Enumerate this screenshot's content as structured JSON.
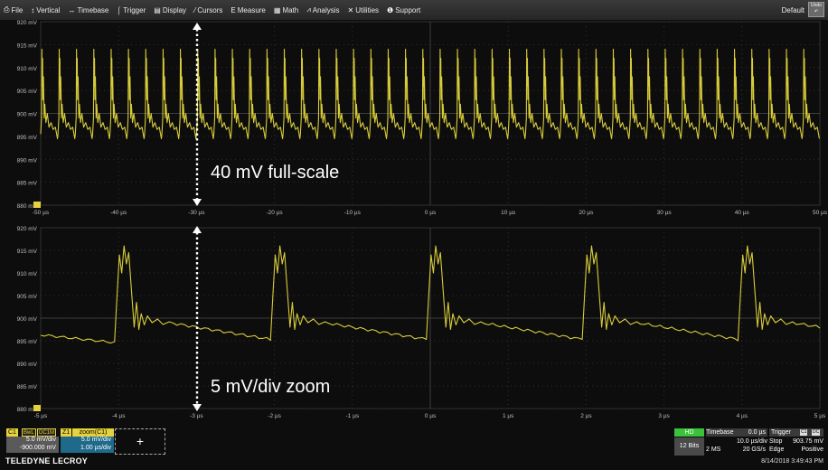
{
  "menu": {
    "items": [
      {
        "icon": "⎙",
        "label": "File",
        "name": "file"
      },
      {
        "icon": "↕",
        "label": "Vertical",
        "name": "vertical"
      },
      {
        "icon": "↔",
        "label": "Timebase",
        "name": "timebase"
      },
      {
        "icon": "⌠",
        "label": "Trigger",
        "name": "trigger"
      },
      {
        "icon": "▤",
        "label": "Display",
        "name": "display"
      },
      {
        "icon": "⁄",
        "label": "Cursors",
        "name": "cursors"
      },
      {
        "icon": "Ε",
        "label": "Measure",
        "name": "measure"
      },
      {
        "icon": "▦",
        "label": "Math",
        "name": "math"
      },
      {
        "icon": "⩘",
        "label": "Analysis",
        "name": "analysis"
      },
      {
        "icon": "✕",
        "label": "Utilities",
        "name": "utilities"
      },
      {
        "icon": "❶",
        "label": "Support",
        "name": "support"
      }
    ],
    "default_label": "Default",
    "undo_label": "Undo"
  },
  "grids": [
    {
      "name": "upper-grid",
      "y_labels": [
        "920 mV",
        "915 mV",
        "910 mV",
        "905 mV",
        "900 mV",
        "895 mV",
        "890 mV",
        "885 mV",
        "880 mV"
      ],
      "x_labels": [
        "-50 µs",
        "-40 µs",
        "-30 µs",
        "-20 µs",
        "-10 µs",
        "0 µs",
        "10 µs",
        "20 µs",
        "30 µs",
        "40 µs",
        "50 µs"
      ]
    },
    {
      "name": "lower-grid",
      "y_labels": [
        "920 mV",
        "915 mV",
        "910 mV",
        "905 mV",
        "900 mV",
        "895 mV",
        "890 mV",
        "885 mV",
        "880 mV"
      ],
      "x_labels": [
        "-5 µs",
        "-4 µs",
        "-3 µs",
        "-2 µs",
        "-1 µs",
        "0 µs",
        "1 µs",
        "2 µs",
        "3 µs",
        "4 µs",
        "5 µs"
      ]
    }
  ],
  "annotations": {
    "upper": "40 mV full-scale",
    "lower": "5 mV/div zoom"
  },
  "colors": {
    "trace": "#d8cc3a",
    "grid": "#3a3a3a",
    "axis_text": "#bfbfbf",
    "channel": "#e6d23a",
    "hd": "#3ac23a"
  },
  "waveform": {
    "upper_pulses": 45,
    "lower_pulses": 5
  },
  "channel": {
    "c1_label": "C1",
    "bwl_tag": "BwL",
    "coupling_tag": "DC1M",
    "scale": "5.0 mV/div",
    "offset": "-900.000 mV"
  },
  "zoom": {
    "z1_label": "Z1",
    "source": "zoom(C1)",
    "scale": "5.0 mV/div",
    "time_scale": "1.00 µs/div"
  },
  "add_label": "+",
  "brand": "TELEDYNE LECROY",
  "status": {
    "hd": "HD",
    "bits": "12 Bits",
    "timebase_label": "Timebase",
    "timebase_delay": "0.0 µs",
    "timebase_div": "10.0 µs/div",
    "samples": "2 MS",
    "rate": "20 GS/s",
    "trigger_label": "Trigger",
    "trigger_ch": "C1",
    "trigger_coupling": "DC",
    "trigger_mode": "Stop",
    "trigger_level": "903.75 mV",
    "trigger_type": "Edge",
    "trigger_slope": "Positive",
    "timestamp": "8/14/2018 3:49:43 PM"
  }
}
